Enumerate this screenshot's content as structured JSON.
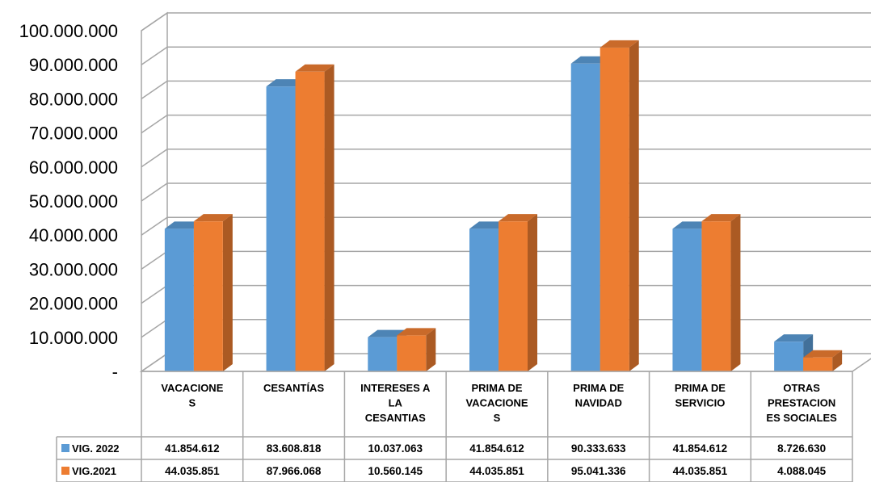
{
  "chart_data": {
    "type": "bar",
    "categories": [
      [
        "VACACIONE",
        "S"
      ],
      [
        "CESANTÍAS"
      ],
      [
        "INTERESES A",
        "LA",
        "CESANTIAS"
      ],
      [
        "PRIMA DE",
        "VACACIONE",
        "S"
      ],
      [
        "PRIMA DE",
        "NAVIDAD"
      ],
      [
        "PRIMA DE",
        "SERVICIO"
      ],
      [
        "OTRAS",
        "PRESTACION",
        "ES SOCIALES"
      ]
    ],
    "series": [
      {
        "name": "VIG. 2022",
        "color": "#5B9BD5",
        "values": [
          41854612,
          83608818,
          10037063,
          41854612,
          90333633,
          41854612,
          8726630
        ],
        "labels": [
          "41.854.612",
          "83.608.818",
          "10.037.063",
          "41.854.612",
          "90.333.633",
          "41.854.612",
          "8.726.630"
        ]
      },
      {
        "name": "VIG.2021",
        "color": "#ED7D31",
        "values": [
          44035851,
          87966068,
          10560145,
          44035851,
          95041336,
          44035851,
          4088045
        ],
        "labels": [
          "44.035.851",
          "87.966.068",
          "10.560.145",
          "44.035.851",
          "95.041.336",
          "44.035.851",
          "4.088.045"
        ]
      }
    ],
    "yticks": [
      "-",
      "10.000.000",
      "20.000.000",
      "30.000.000",
      "40.000.000",
      "50.000.000",
      "60.000.000",
      "70.000.000",
      "80.000.000",
      "90.000.000",
      "100.000.000"
    ],
    "ylim": [
      0,
      100000000
    ],
    "grid": true,
    "legend": "data-table",
    "style": "3d-clustered-column"
  }
}
